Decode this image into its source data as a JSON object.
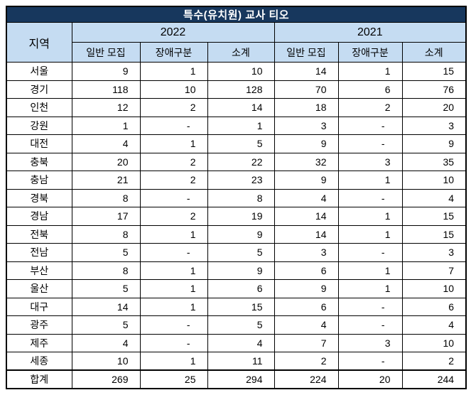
{
  "chart_data": {
    "type": "table",
    "title": "특수(유치원) 교사 티오",
    "region_header": "지역",
    "year_groups": [
      {
        "year": "2022",
        "subheaders": [
          "일반 모집",
          "장애구분",
          "소계"
        ]
      },
      {
        "year": "2021",
        "subheaders": [
          "일반 모집",
          "장애구분",
          "소계"
        ]
      }
    ],
    "rows": [
      {
        "region": "서울",
        "values": [
          "9",
          "1",
          "10",
          "14",
          "1",
          "15"
        ]
      },
      {
        "region": "경기",
        "values": [
          "118",
          "10",
          "128",
          "70",
          "6",
          "76"
        ]
      },
      {
        "region": "인천",
        "values": [
          "12",
          "2",
          "14",
          "18",
          "2",
          "20"
        ]
      },
      {
        "region": "강원",
        "values": [
          "1",
          "-",
          "1",
          "3",
          "-",
          "3"
        ]
      },
      {
        "region": "대전",
        "values": [
          "4",
          "1",
          "5",
          "9",
          "-",
          "9"
        ]
      },
      {
        "region": "충북",
        "values": [
          "20",
          "2",
          "22",
          "32",
          "3",
          "35"
        ]
      },
      {
        "region": "충남",
        "values": [
          "21",
          "2",
          "23",
          "9",
          "1",
          "10"
        ]
      },
      {
        "region": "경북",
        "values": [
          "8",
          "-",
          "8",
          "4",
          "-",
          "4"
        ]
      },
      {
        "region": "경남",
        "values": [
          "17",
          "2",
          "19",
          "14",
          "1",
          "15"
        ]
      },
      {
        "region": "전북",
        "values": [
          "8",
          "1",
          "9",
          "14",
          "1",
          "15"
        ]
      },
      {
        "region": "전남",
        "values": [
          "5",
          "-",
          "5",
          "3",
          "-",
          "3"
        ]
      },
      {
        "region": "부산",
        "values": [
          "8",
          "1",
          "9",
          "6",
          "1",
          "7"
        ]
      },
      {
        "region": "울산",
        "values": [
          "5",
          "1",
          "6",
          "9",
          "1",
          "10"
        ]
      },
      {
        "region": "대구",
        "values": [
          "14",
          "1",
          "15",
          "6",
          "-",
          "6"
        ]
      },
      {
        "region": "광주",
        "values": [
          "5",
          "-",
          "5",
          "4",
          "-",
          "4"
        ]
      },
      {
        "region": "제주",
        "values": [
          "4",
          "-",
          "4",
          "7",
          "3",
          "10"
        ]
      },
      {
        "region": "세종",
        "values": [
          "10",
          "1",
          "11",
          "2",
          "-",
          "2"
        ]
      }
    ],
    "total_row": {
      "region": "합계",
      "values": [
        "269",
        "25",
        "294",
        "224",
        "20",
        "244"
      ]
    }
  },
  "colors": {
    "title_bg": "#17375D",
    "title_text": "#FFFFFF",
    "header_bg": "#C5DCF2",
    "grid_border": "#000000",
    "cell_bg": "#FFFFFF",
    "body_text": "#000000"
  }
}
